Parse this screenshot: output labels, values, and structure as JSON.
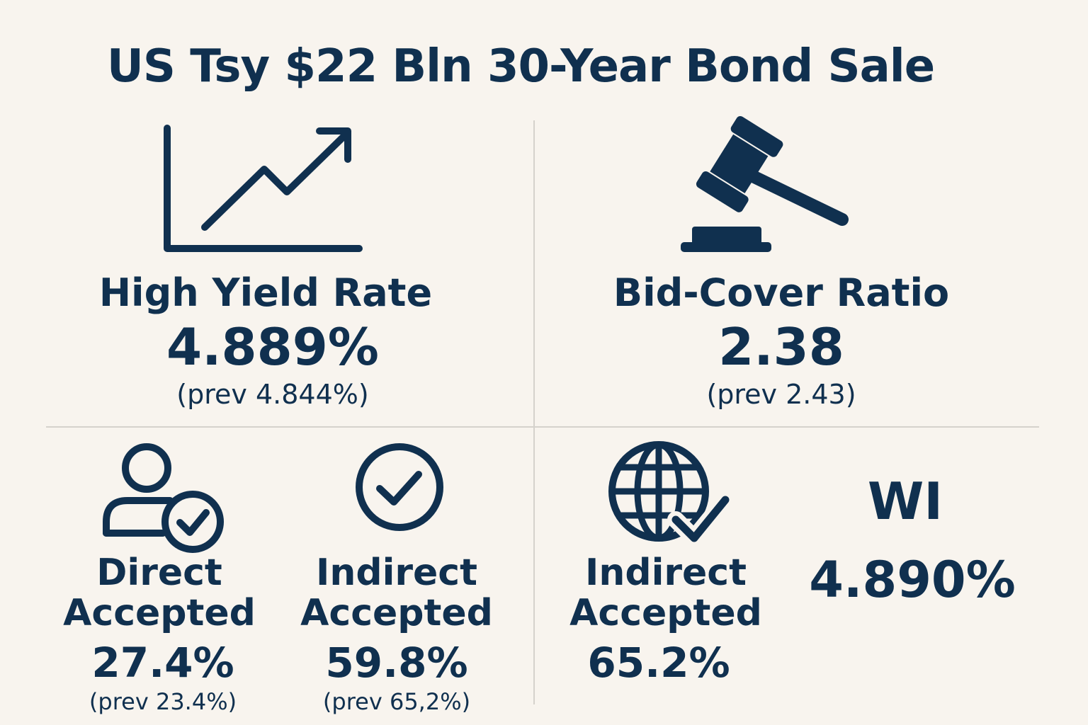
{
  "title": "US Tsy $22 Bln 30-Year Bond Sale",
  "colors": {
    "background": "#f8f4ee",
    "ink": "#10304f",
    "divider": "#d5d2cc"
  },
  "high_yield": {
    "icon": "trending-up-chart-icon",
    "label": "High Yield Rate",
    "value": "4.889%",
    "prev": "(prev 4.844%)"
  },
  "bid_cover": {
    "icon": "gavel-icon",
    "label": "Bid-Cover Ratio",
    "value": "2.38",
    "prev": "(prev 2.43)"
  },
  "direct": {
    "icon": "user-check-icon",
    "label_line1": "Direct",
    "label_line2": "Accepted",
    "value": "27.4%",
    "prev": "(prev 23.4%)"
  },
  "indirect": {
    "icon": "check-circle-icon",
    "label_line1": "Indirect",
    "label_line2": "Accepted",
    "value": "59.8%",
    "prev": "(prev 65,2%)"
  },
  "indirect_2": {
    "icon": "globe-check-icon",
    "label_line1": "Indirect",
    "label_line2": "Accepted",
    "value": "65.2%"
  },
  "wi": {
    "label": "WI",
    "value": "4.890%"
  }
}
